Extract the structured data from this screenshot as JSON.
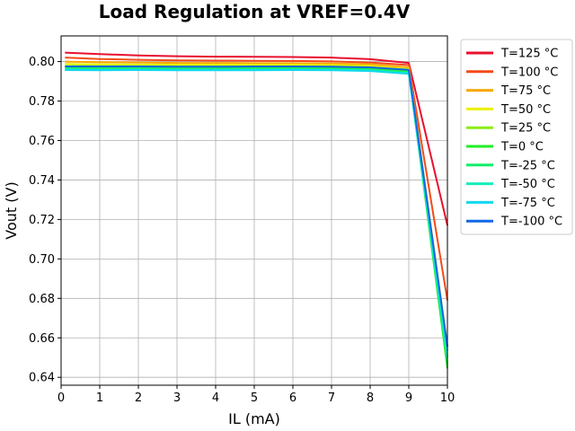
{
  "chart_data": {
    "type": "line",
    "title": "Load Regulation at VREF=0.4V",
    "xlabel": "IL (mA)",
    "ylabel": "Vout (V)",
    "xlim": [
      0,
      10
    ],
    "ylim": [
      0.636,
      0.813
    ],
    "xticks": [
      0,
      1,
      2,
      3,
      4,
      5,
      6,
      7,
      8,
      9,
      10
    ],
    "yticks": [
      0.64,
      0.66,
      0.68,
      0.7,
      0.72,
      0.74,
      0.76,
      0.78,
      0.8
    ],
    "ytick_labels": [
      "0.64",
      "0.66",
      "0.68",
      "0.70",
      "0.72",
      "0.74",
      "0.76",
      "0.78",
      "0.80"
    ],
    "grid": true,
    "legend_position": "outside-top-right",
    "x": [
      0.1,
      1,
      2,
      3,
      4,
      5,
      6,
      7,
      8,
      9,
      10
    ],
    "series": [
      {
        "name": "T=125 °C",
        "color": "#e8102e",
        "values": [
          0.8045,
          0.8038,
          0.8031,
          0.8027,
          0.8025,
          0.8024,
          0.8023,
          0.802,
          0.8012,
          0.7993,
          0.717
        ]
      },
      {
        "name": "T=100 °C",
        "color": "#f54a1a",
        "values": [
          0.802,
          0.8013,
          0.8009,
          0.8006,
          0.8005,
          0.8004,
          0.8003,
          0.8001,
          0.7995,
          0.7982,
          0.679
        ]
      },
      {
        "name": "T=75 °C",
        "color": "#f9a800",
        "values": [
          0.8,
          0.7997,
          0.7995,
          0.7993,
          0.7993,
          0.7992,
          0.7992,
          0.799,
          0.7986,
          0.797,
          0.656
        ]
      },
      {
        "name": "T=50 °C",
        "color": "#e9f000",
        "values": [
          0.7988,
          0.7986,
          0.7985,
          0.7984,
          0.7984,
          0.7984,
          0.7984,
          0.7982,
          0.7978,
          0.7963,
          0.651
        ]
      },
      {
        "name": "T=25 °C",
        "color": "#8aee14",
        "values": [
          0.7978,
          0.7977,
          0.7977,
          0.7976,
          0.7976,
          0.7976,
          0.7976,
          0.7975,
          0.7971,
          0.7957,
          0.6455
        ]
      },
      {
        "name": "T=0 °C",
        "color": "#22ee22",
        "values": [
          0.7972,
          0.7971,
          0.7971,
          0.797,
          0.797,
          0.797,
          0.797,
          0.7969,
          0.7965,
          0.7951,
          0.6445
        ]
      },
      {
        "name": "T=-25 °C",
        "color": "#11ee66",
        "values": [
          0.7966,
          0.7965,
          0.7966,
          0.7965,
          0.7965,
          0.7965,
          0.7965,
          0.7964,
          0.796,
          0.7946,
          0.647
        ]
      },
      {
        "name": "T=-50 °C",
        "color": "#14eebb",
        "values": [
          0.796,
          0.7959,
          0.796,
          0.7959,
          0.7959,
          0.7959,
          0.796,
          0.7959,
          0.7955,
          0.7941,
          0.65
        ]
      },
      {
        "name": "T=-75 °C",
        "color": "#10d8ee",
        "values": [
          0.7957,
          0.7956,
          0.7957,
          0.7956,
          0.7956,
          0.7956,
          0.7957,
          0.7956,
          0.7952,
          0.7938,
          0.6535
        ]
      },
      {
        "name": "T=-100 °C",
        "color": "#1268e6",
        "values": [
          0.7975,
          0.7975,
          0.7975,
          0.7974,
          0.7974,
          0.7975,
          0.7975,
          0.7974,
          0.7971,
          0.7958,
          0.6555
        ]
      }
    ]
  }
}
